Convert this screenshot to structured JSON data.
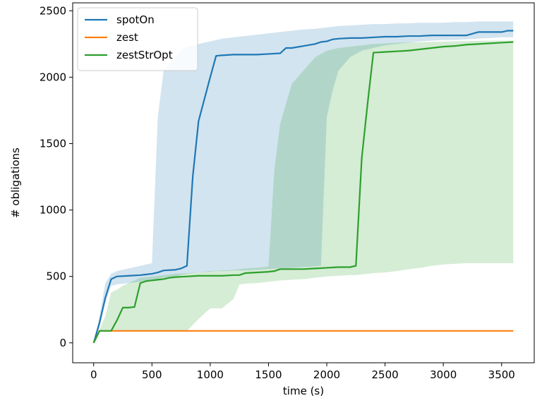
{
  "chart_data": {
    "type": "line",
    "xlabel": "time (s)",
    "ylabel": "# obligations",
    "xlim": [
      -180,
      3780
    ],
    "ylim": [
      -150,
      2560
    ],
    "xticks": [
      0,
      500,
      1000,
      1500,
      2000,
      2500,
      3000,
      3500
    ],
    "yticks": [
      0,
      500,
      1000,
      1500,
      2000,
      2500
    ],
    "legend_position": "top-left",
    "grid": false,
    "series": [
      {
        "name": "spotOn",
        "color": "#1f77b4",
        "x": [
          0,
          50,
          100,
          150,
          200,
          300,
          400,
          450,
          500,
          550,
          600,
          700,
          750,
          800,
          850,
          900,
          1000,
          1050,
          1100,
          1200,
          1300,
          1400,
          1500,
          1600,
          1650,
          1700,
          1800,
          1900,
          1950,
          2000,
          2050,
          2100,
          2200,
          2300,
          2400,
          2500,
          2600,
          2700,
          2800,
          2900,
          3000,
          3100,
          3200,
          3300,
          3400,
          3500,
          3550,
          3600
        ],
        "y": [
          0,
          150,
          340,
          480,
          500,
          505,
          510,
          515,
          520,
          530,
          545,
          550,
          560,
          580,
          1250,
          1670,
          2000,
          2160,
          2165,
          2170,
          2170,
          2170,
          2175,
          2180,
          2220,
          2220,
          2235,
          2250,
          2265,
          2270,
          2285,
          2290,
          2295,
          2295,
          2300,
          2305,
          2305,
          2310,
          2310,
          2315,
          2315,
          2315,
          2315,
          2340,
          2340,
          2340,
          2350,
          2350
        ],
        "band_lower": [
          0,
          120,
          300,
          430,
          440,
          450,
          460,
          470,
          475,
          480,
          490,
          500,
          510,
          520,
          525,
          530,
          535,
          540,
          540,
          545,
          545,
          550,
          555,
          560,
          560,
          565,
          570,
          575,
          580,
          1700,
          1900,
          2050,
          2150,
          2200,
          2220,
          2240,
          2250,
          2260,
          2270,
          2275,
          2280,
          2280,
          2285,
          2290,
          2295,
          2300,
          2300,
          2300
        ],
        "band_upper": [
          0,
          200,
          450,
          520,
          540,
          560,
          580,
          590,
          600,
          1700,
          2050,
          2150,
          2200,
          2230,
          2240,
          2250,
          2270,
          2280,
          2290,
          2300,
          2310,
          2320,
          2330,
          2340,
          2345,
          2350,
          2360,
          2365,
          2370,
          2375,
          2380,
          2385,
          2390,
          2395,
          2400,
          2400,
          2405,
          2405,
          2410,
          2410,
          2410,
          2415,
          2415,
          2420,
          2420,
          2420,
          2420,
          2420
        ]
      },
      {
        "name": "zest",
        "color": "#ff7f0e",
        "x": [
          0,
          50,
          100,
          3600
        ],
        "y": [
          0,
          90,
          90,
          90
        ]
      },
      {
        "name": "zestStrOpt",
        "color": "#2ca02c",
        "x": [
          0,
          50,
          100,
          150,
          200,
          250,
          300,
          350,
          400,
          450,
          500,
          550,
          600,
          650,
          700,
          800,
          900,
          1000,
          1100,
          1200,
          1250,
          1300,
          1400,
          1500,
          1550,
          1600,
          1700,
          1800,
          1900,
          2000,
          2100,
          2200,
          2250,
          2300,
          2350,
          2400,
          2500,
          2600,
          2700,
          2800,
          2900,
          3000,
          3100,
          3200,
          3300,
          3400,
          3500,
          3600
        ],
        "y": [
          0,
          90,
          90,
          90,
          170,
          265,
          265,
          270,
          450,
          465,
          470,
          475,
          480,
          490,
          495,
          500,
          505,
          505,
          505,
          510,
          510,
          525,
          530,
          535,
          540,
          555,
          555,
          555,
          560,
          565,
          570,
          570,
          580,
          1390,
          1800,
          2185,
          2190,
          2195,
          2200,
          2210,
          2220,
          2230,
          2235,
          2245,
          2250,
          2255,
          2260,
          2265
        ],
        "band_lower": [
          0,
          80,
          85,
          90,
          90,
          90,
          90,
          90,
          90,
          90,
          90,
          90,
          90,
          90,
          90,
          90,
          180,
          260,
          260,
          330,
          440,
          445,
          450,
          460,
          465,
          470,
          475,
          480,
          490,
          500,
          505,
          510,
          510,
          515,
          520,
          525,
          530,
          540,
          555,
          565,
          580,
          590,
          595,
          600,
          600,
          600,
          600,
          600
        ],
        "band_upper": [
          0,
          100,
          200,
          380,
          400,
          430,
          450,
          470,
          490,
          495,
          500,
          505,
          510,
          515,
          520,
          525,
          530,
          540,
          545,
          550,
          555,
          560,
          565,
          575,
          1300,
          1650,
          1950,
          2050,
          2150,
          2200,
          2220,
          2230,
          2235,
          2240,
          2245,
          2250,
          2255,
          2260,
          2262,
          2264,
          2266,
          2268,
          2270,
          2272,
          2274,
          2275,
          2276,
          2276
        ]
      }
    ]
  }
}
